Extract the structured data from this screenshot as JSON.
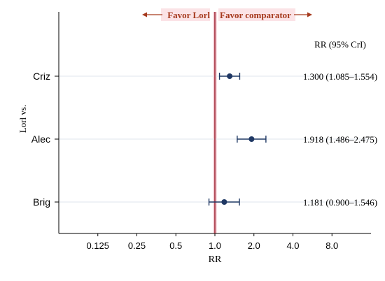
{
  "chart_data": {
    "type": "forest",
    "y_axis_label": "Lorl vs.",
    "x_axis_label": "RR",
    "x_scale": "log2",
    "x_ticks": [
      "0.125",
      "0.25",
      "0.5",
      "1.0",
      "2.0",
      "4.0",
      "8.0"
    ],
    "x_tick_values": [
      0.125,
      0.25,
      0.5,
      1.0,
      2.0,
      4.0,
      8.0
    ],
    "xlim": [
      0.0625,
      16
    ],
    "reference_line": 1.0,
    "favor_left_label": "Favor Lorl",
    "favor_right_label": "Favor comparator",
    "ci_column_header": "RR (95% CrI)",
    "studies": [
      {
        "name": "Criz",
        "rr": 1.3,
        "low": 1.085,
        "high": 1.554,
        "text": "1.300 (1.085–1.554)"
      },
      {
        "name": "Alec",
        "rr": 1.918,
        "low": 1.486,
        "high": 2.475,
        "text": "1.918 (1.486–2.475)"
      },
      {
        "name": "Brig",
        "rr": 1.181,
        "low": 0.9,
        "high": 1.546,
        "text": "1.181 (0.900–1.546)"
      }
    ],
    "grid": true,
    "colors": {
      "marker": "#1f3864",
      "reference": "#9b1b2c",
      "reference_band": "#f6d9de",
      "arrow": "#a63a1e",
      "favor_bg": "#fbe3e6"
    }
  }
}
